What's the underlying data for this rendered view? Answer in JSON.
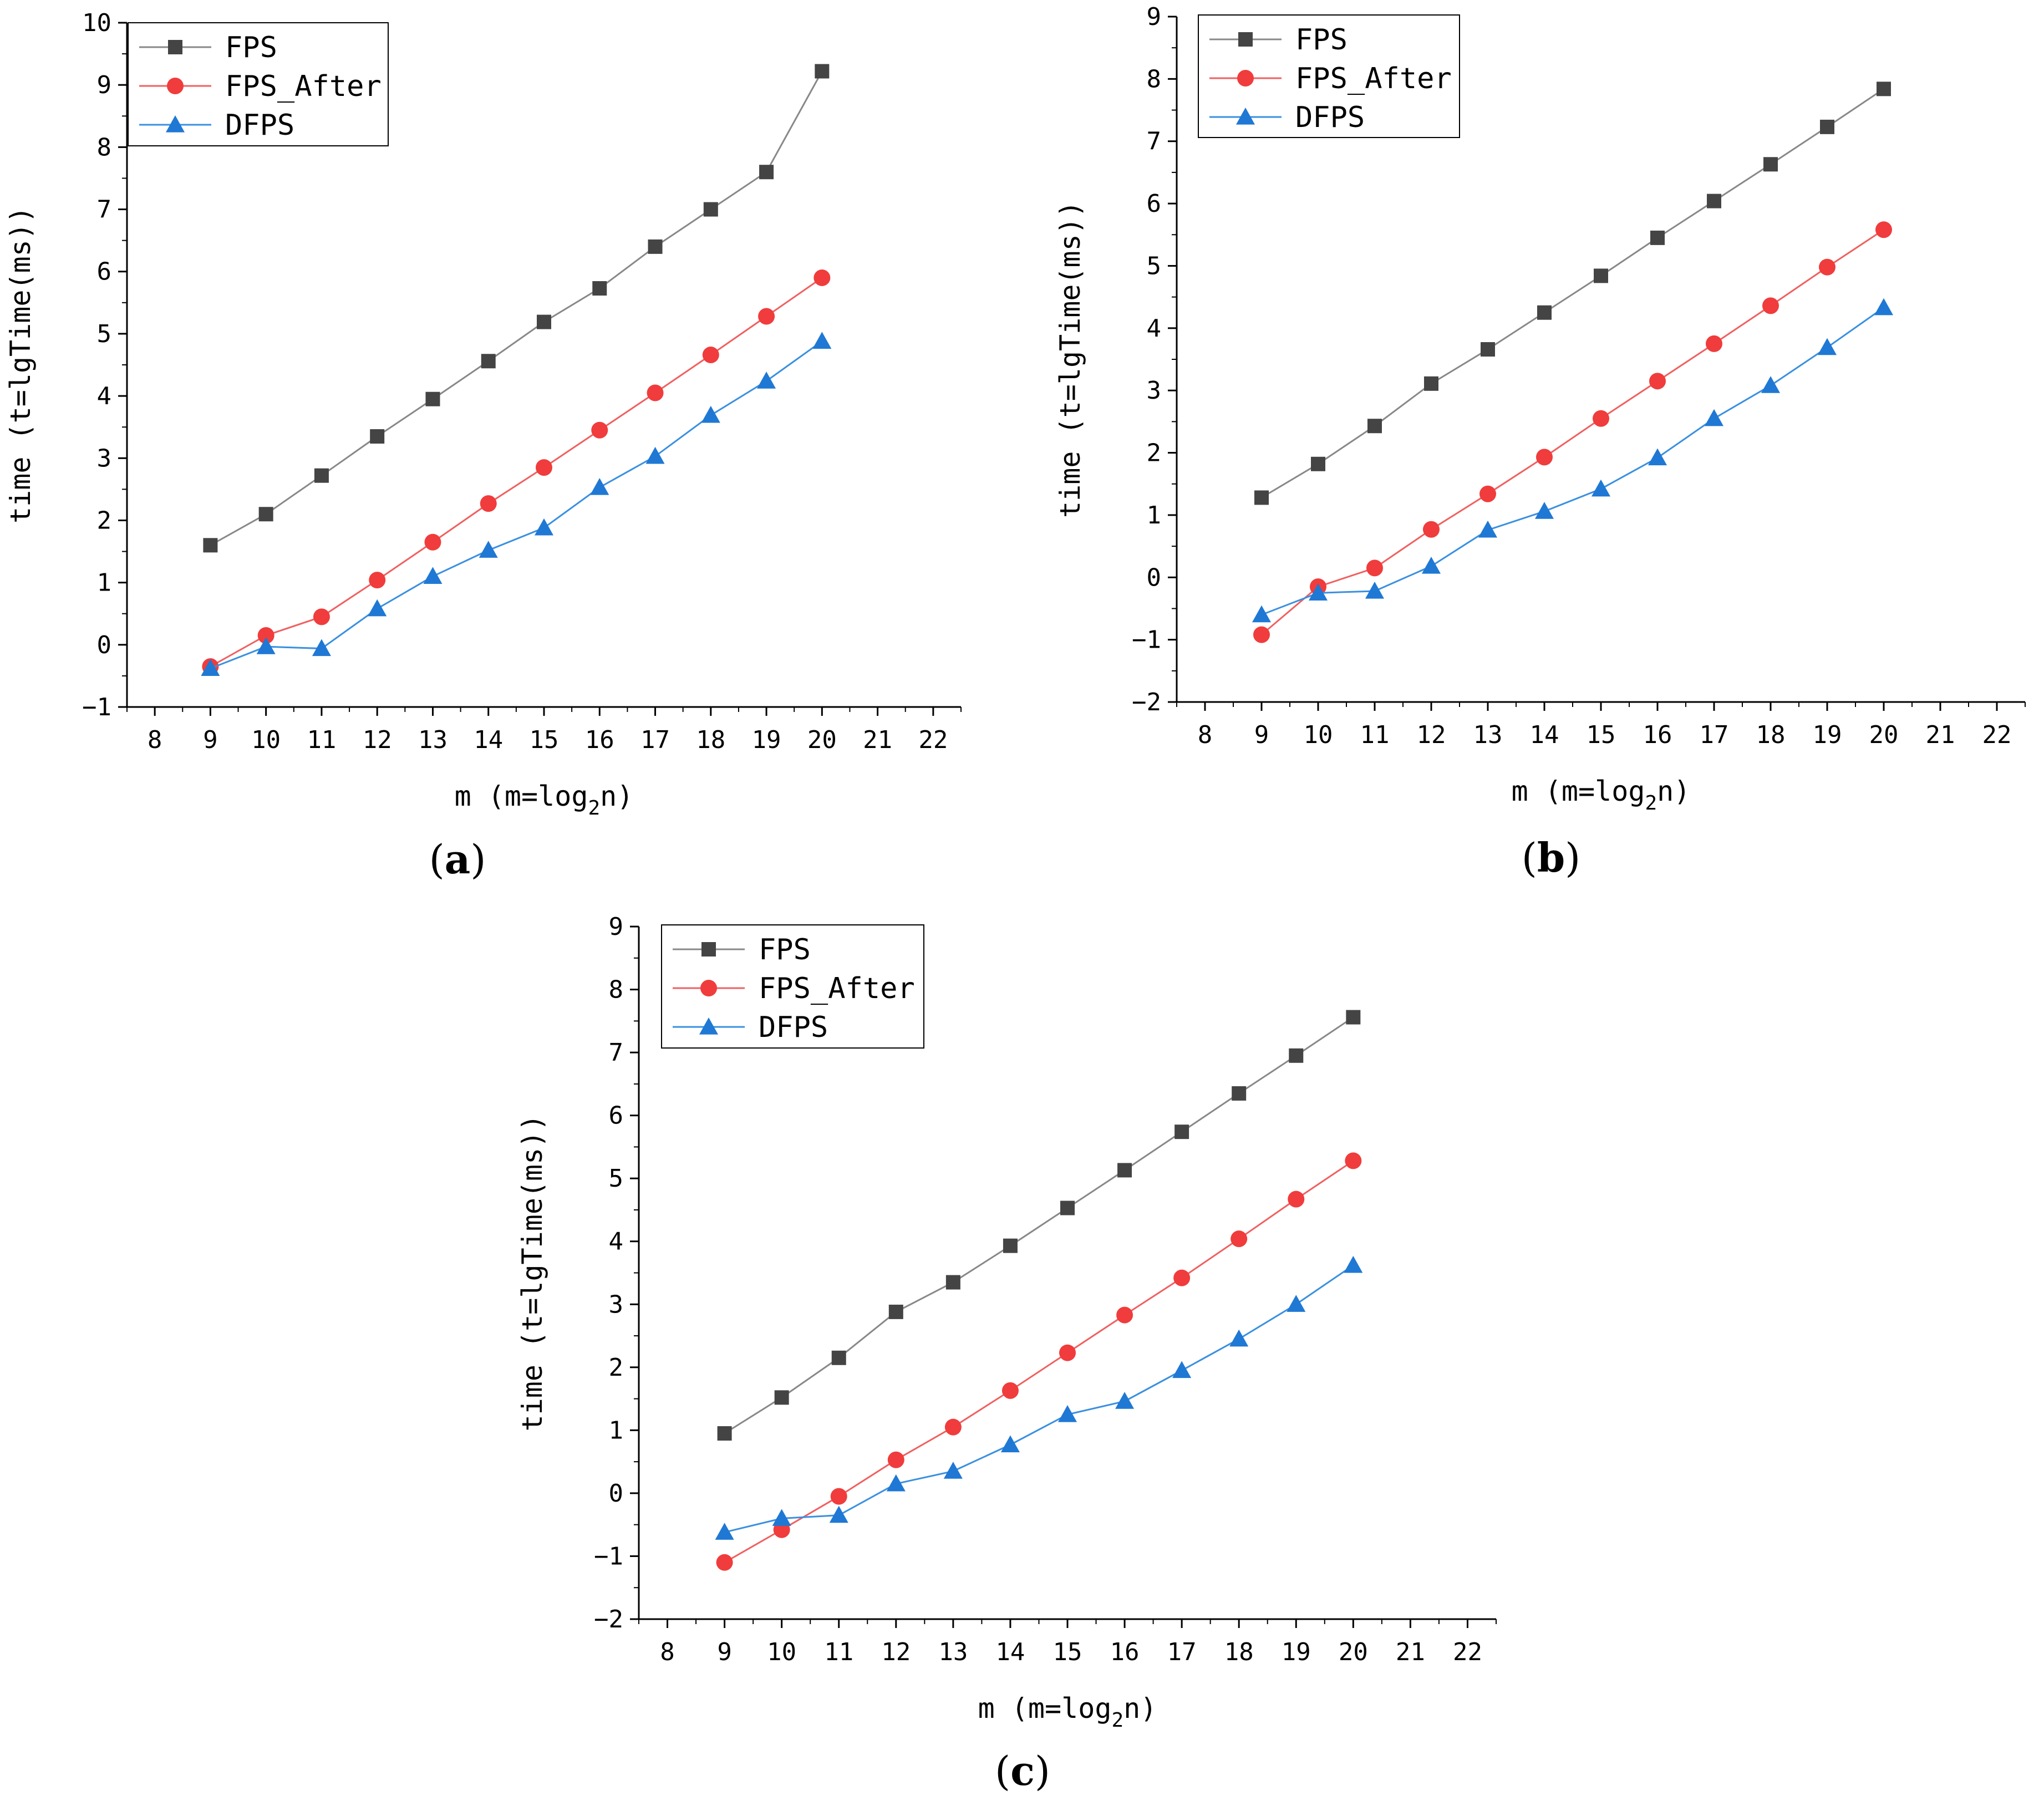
{
  "chart_data": [
    {
      "type": "line",
      "panel_label": "a",
      "xlabel_prefix": "m (m=log",
      "xlabel_sub": "2",
      "xlabel_suffix": "n)",
      "ylabel": "time (t=lgTime(ms))",
      "xlim": [
        7.5,
        22.5
      ],
      "ylim": [
        -1,
        10
      ],
      "xticks": [
        8,
        9,
        10,
        11,
        12,
        13,
        14,
        15,
        16,
        17,
        18,
        19,
        20,
        21,
        22
      ],
      "yticks": [
        -1,
        0,
        1,
        2,
        3,
        4,
        5,
        6,
        7,
        8,
        9,
        10
      ],
      "legend_position": "top-left",
      "x": [
        9,
        10,
        11,
        12,
        13,
        14,
        15,
        16,
        17,
        18,
        19,
        20
      ],
      "series": [
        {
          "name": "FPS",
          "marker": "square",
          "color": "#444444",
          "line_color": "#888888",
          "values": [
            1.6,
            2.1,
            2.72,
            3.35,
            3.95,
            4.56,
            5.19,
            5.73,
            6.4,
            7.0,
            7.6,
            9.22
          ]
        },
        {
          "name": "FPS_After",
          "marker": "circle",
          "color": "#f03c3c",
          "line_color": "#f06060",
          "values": [
            -0.35,
            0.15,
            0.45,
            1.04,
            1.65,
            2.27,
            2.85,
            3.45,
            4.05,
            4.66,
            5.28,
            5.9
          ]
        },
        {
          "name": "DFPS",
          "marker": "triangle",
          "color": "#1f78d4",
          "line_color": "#3a90e0",
          "values": [
            -0.38,
            -0.03,
            -0.06,
            0.58,
            1.1,
            1.52,
            1.88,
            2.53,
            3.03,
            3.69,
            4.24,
            4.88
          ]
        }
      ]
    },
    {
      "type": "line",
      "panel_label": "b",
      "xlabel_prefix": "m (m=log",
      "xlabel_sub": "2",
      "xlabel_suffix": "n)",
      "ylabel": "time (t=lgTime(ms))",
      "xlim": [
        7.5,
        22.5
      ],
      "ylim": [
        -2,
        9
      ],
      "xticks": [
        8,
        9,
        10,
        11,
        12,
        13,
        14,
        15,
        16,
        17,
        18,
        19,
        20,
        21,
        22
      ],
      "yticks": [
        -2,
        -1,
        0,
        1,
        2,
        3,
        4,
        5,
        6,
        7,
        8,
        9
      ],
      "legend_position": "top-left",
      "x": [
        9,
        10,
        11,
        12,
        13,
        14,
        15,
        16,
        17,
        18,
        19,
        20
      ],
      "series": [
        {
          "name": "FPS",
          "marker": "square",
          "color": "#444444",
          "line_color": "#888888",
          "values": [
            1.28,
            1.82,
            2.43,
            3.11,
            3.66,
            4.25,
            4.84,
            5.45,
            6.04,
            6.63,
            7.23,
            7.84
          ]
        },
        {
          "name": "FPS_After",
          "marker": "circle",
          "color": "#f03c3c",
          "line_color": "#f06060",
          "values": [
            -0.92,
            -0.15,
            0.15,
            0.77,
            1.34,
            1.93,
            2.55,
            3.15,
            3.75,
            4.36,
            4.98,
            5.58
          ]
        },
        {
          "name": "DFPS",
          "marker": "triangle",
          "color": "#1f78d4",
          "line_color": "#3a90e0",
          "values": [
            -0.6,
            -0.25,
            -0.22,
            0.18,
            0.76,
            1.06,
            1.42,
            1.92,
            2.55,
            3.08,
            3.69,
            4.33
          ]
        }
      ]
    },
    {
      "type": "line",
      "panel_label": "c",
      "xlabel_prefix": "m (m=log",
      "xlabel_sub": "2",
      "xlabel_suffix": "n)",
      "ylabel": "time (t=lgTime(ms))",
      "xlim": [
        7.5,
        22.5
      ],
      "ylim": [
        -2,
        9
      ],
      "xticks": [
        8,
        9,
        10,
        11,
        12,
        13,
        14,
        15,
        16,
        17,
        18,
        19,
        20,
        21,
        22
      ],
      "yticks": [
        -2,
        -1,
        0,
        1,
        2,
        3,
        4,
        5,
        6,
        7,
        8,
        9
      ],
      "legend_position": "top-left",
      "x": [
        9,
        10,
        11,
        12,
        13,
        14,
        15,
        16,
        17,
        18,
        19,
        20
      ],
      "series": [
        {
          "name": "FPS",
          "marker": "square",
          "color": "#444444",
          "line_color": "#888888",
          "values": [
            0.95,
            1.52,
            2.15,
            2.88,
            3.35,
            3.93,
            4.53,
            5.13,
            5.74,
            6.35,
            6.95,
            7.56
          ]
        },
        {
          "name": "FPS_After",
          "marker": "circle",
          "color": "#f03c3c",
          "line_color": "#f06060",
          "values": [
            -1.1,
            -0.58,
            -0.05,
            0.53,
            1.05,
            1.63,
            2.23,
            2.83,
            3.42,
            4.04,
            4.67,
            5.28
          ]
        },
        {
          "name": "DFPS",
          "marker": "triangle",
          "color": "#1f78d4",
          "line_color": "#3a90e0",
          "values": [
            -0.62,
            -0.4,
            -0.35,
            0.15,
            0.35,
            0.77,
            1.25,
            1.46,
            1.95,
            2.45,
            3.0,
            3.62
          ]
        }
      ]
    }
  ]
}
